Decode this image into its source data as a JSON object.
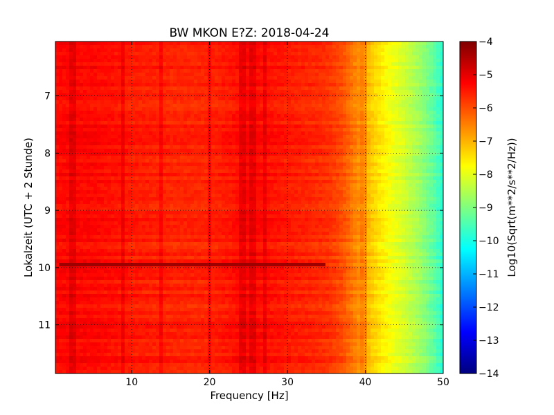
{
  "chart_data": {
    "type": "heatmap",
    "title": "BW MKON E?Z: 2018-04-24",
    "xlabel": "Frequency [Hz]",
    "ylabel": "Lokalzeit (UTC + 2 Stunde)",
    "colorbar_label": "Log10(Sqrt(m**2/s**2/Hz))",
    "xlim": [
      0.2,
      50
    ],
    "ylim": [
      11.85,
      6.05
    ],
    "y_inverted": true,
    "xticks": [
      10,
      20,
      30,
      40,
      50
    ],
    "yticks": [
      7,
      8,
      9,
      10,
      11
    ],
    "clim": [
      -14,
      -4
    ],
    "cbar_ticks": [
      -4,
      -5,
      -6,
      -7,
      -8,
      -9,
      -10,
      -11,
      -12,
      -13,
      -14
    ],
    "colormap": "jet",
    "grid": "dotted",
    "spectrum_profile": {
      "frequency_hz": [
        0,
        5,
        10,
        15,
        20,
        25,
        30,
        35,
        37,
        39,
        41,
        43,
        45,
        47,
        49,
        50
      ],
      "log10_amplitude": [
        -5.3,
        -5.3,
        -5.5,
        -5.6,
        -5.6,
        -5.3,
        -5.5,
        -5.7,
        -6.0,
        -6.6,
        -7.3,
        -7.8,
        -8.2,
        -8.7,
        -9.4,
        -9.9
      ]
    },
    "spectral_lines_hz": [
      2.5,
      8.8,
      13.8,
      19.9,
      24.2,
      25.5,
      27.0,
      39.7
    ],
    "event": {
      "time": 9.95,
      "freq_range_hz": [
        0.5,
        35
      ],
      "log10_amplitude": -4.3
    }
  }
}
